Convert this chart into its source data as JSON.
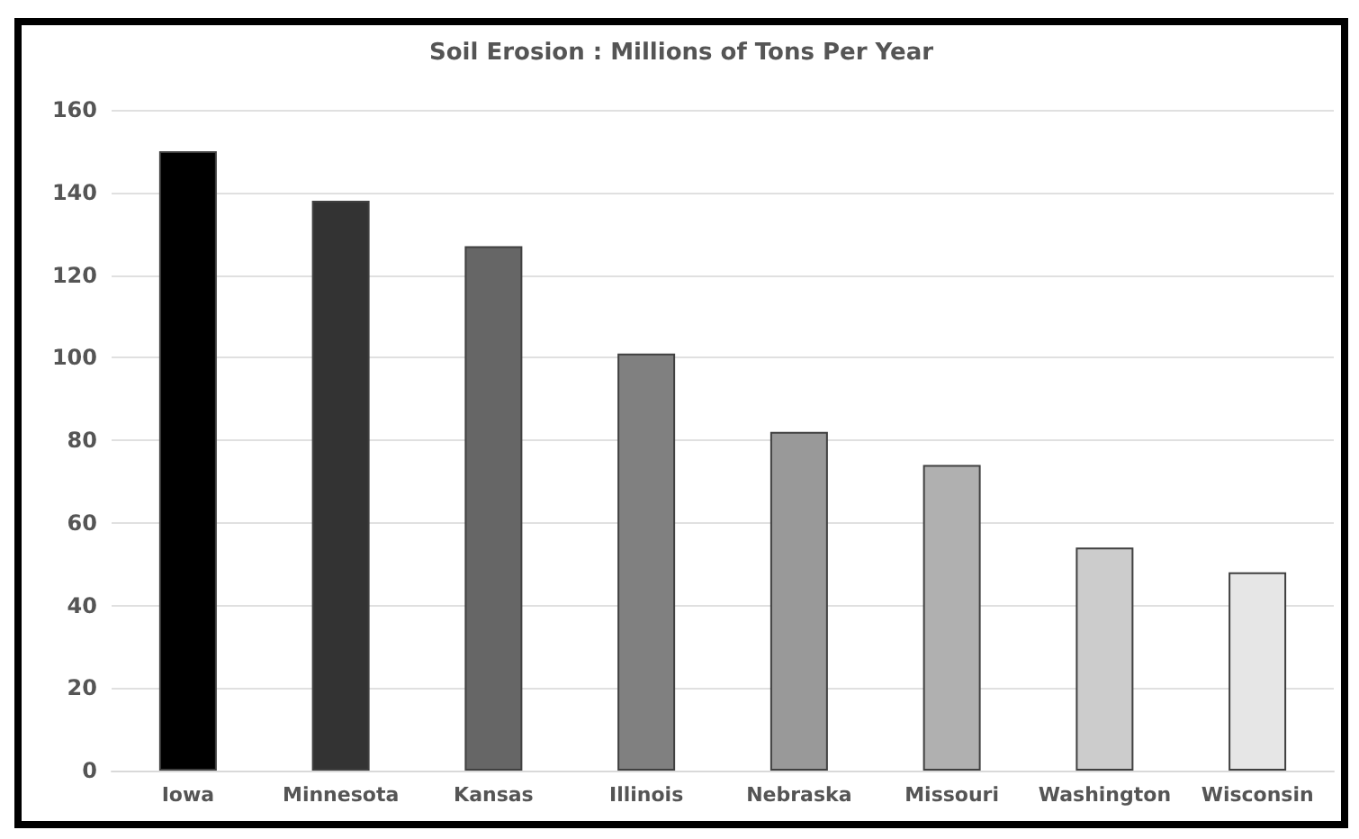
{
  "chart_data": {
    "type": "bar",
    "title": "Soil Erosion : Millions of Tons Per Year",
    "categories": [
      "Iowa",
      "Minnesota",
      "Kansas",
      "Illinois",
      "Nebraska",
      "Missouri",
      "Washington",
      "Wisconsin"
    ],
    "values": [
      150,
      138,
      127,
      101,
      82,
      74,
      54,
      48
    ],
    "colors": [
      "#000000",
      "#333333",
      "#666666",
      "#808080",
      "#999999",
      "#b0b0b0",
      "#cccccc",
      "#e6e6e6"
    ],
    "ylim": [
      0,
      160
    ],
    "yticks": [
      0,
      20,
      40,
      60,
      80,
      100,
      120,
      140,
      160
    ],
    "grid": "y"
  }
}
